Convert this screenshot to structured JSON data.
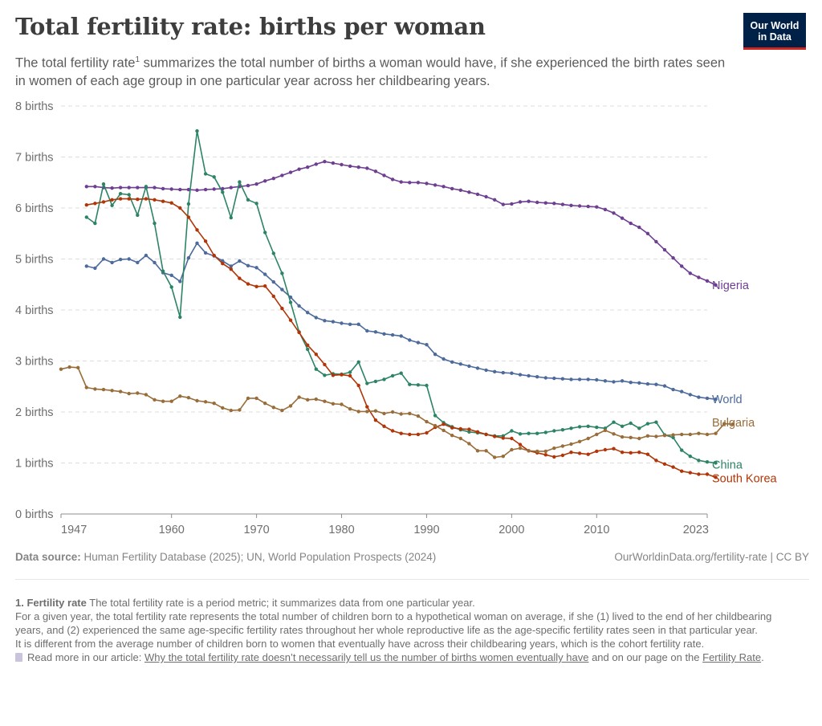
{
  "header": {
    "title": "Total fertility rate: births per woman",
    "subtitle_part1": "The total fertility rate",
    "subtitle_sup": "1",
    "subtitle_part2": " summarizes the total number of births a woman would have, if she experienced the birth rates seen in women of each age group in one particular year across her childbearing years.",
    "logo_line1": "Our World",
    "logo_line2": "in Data"
  },
  "chart_data": {
    "type": "line",
    "yunit": "births",
    "ylim": [
      0,
      8
    ],
    "yticks": [
      0,
      1,
      2,
      3,
      4,
      5,
      6,
      7,
      8
    ],
    "ytick_labels": [
      "0 births",
      "1 births",
      "2 births",
      "3 births",
      "4 births",
      "5 births",
      "6 births",
      "7 births",
      "8 births"
    ],
    "xlim": [
      1947,
      2023
    ],
    "xticks": [
      1947,
      1960,
      1970,
      1980,
      1990,
      2000,
      2010,
      2023
    ],
    "grid": "horizontal-dashed",
    "legend": "inline-right",
    "series": [
      {
        "name": "Nigeria",
        "color": "#6d3e91",
        "start": 1950,
        "values": [
          6.42,
          6.42,
          6.4,
          6.39,
          6.4,
          6.4,
          6.4,
          6.4,
          6.4,
          6.38,
          6.37,
          6.36,
          6.36,
          6.35,
          6.36,
          6.37,
          6.38,
          6.4,
          6.42,
          6.44,
          6.47,
          6.53,
          6.58,
          6.64,
          6.7,
          6.76,
          6.8,
          6.86,
          6.91,
          6.88,
          6.85,
          6.82,
          6.8,
          6.78,
          6.72,
          6.64,
          6.56,
          6.51,
          6.5,
          6.5,
          6.48,
          6.45,
          6.42,
          6.38,
          6.35,
          6.31,
          6.27,
          6.22,
          6.16,
          6.07,
          6.08,
          6.12,
          6.13,
          6.11,
          6.1,
          6.09,
          6.07,
          6.05,
          6.04,
          6.03,
          6.02,
          5.97,
          5.9,
          5.8,
          5.7,
          5.62,
          5.5,
          5.34,
          5.18,
          5.02,
          4.86,
          4.72,
          4.64,
          4.57,
          4.49
        ]
      },
      {
        "name": "World",
        "color": "#4c6a9c",
        "start": 1950,
        "values": [
          4.86,
          4.82,
          5.0,
          4.93,
          4.99,
          5.0,
          4.93,
          5.07,
          4.93,
          4.73,
          4.68,
          4.56,
          5.02,
          5.31,
          5.12,
          5.06,
          4.96,
          4.86,
          4.96,
          4.87,
          4.83,
          4.7,
          4.55,
          4.4,
          4.25,
          4.08,
          3.95,
          3.85,
          3.79,
          3.77,
          3.74,
          3.72,
          3.72,
          3.59,
          3.57,
          3.53,
          3.51,
          3.49,
          3.41,
          3.36,
          3.32,
          3.13,
          3.04,
          2.98,
          2.94,
          2.9,
          2.86,
          2.82,
          2.79,
          2.77,
          2.76,
          2.73,
          2.71,
          2.69,
          2.67,
          2.66,
          2.65,
          2.64,
          2.64,
          2.64,
          2.63,
          2.61,
          2.59,
          2.61,
          2.58,
          2.57,
          2.55,
          2.54,
          2.51,
          2.44,
          2.4,
          2.34,
          2.29,
          2.27,
          2.25
        ]
      },
      {
        "name": "China",
        "color": "#2c8465",
        "start": 1950,
        "values": [
          5.82,
          5.7,
          6.47,
          6.05,
          6.28,
          6.26,
          5.86,
          6.42,
          5.7,
          4.76,
          4.45,
          3.86,
          6.08,
          7.51,
          6.67,
          6.61,
          6.31,
          5.81,
          6.51,
          6.16,
          6.09,
          5.52,
          5.11,
          4.72,
          4.15,
          3.57,
          3.23,
          2.84,
          2.72,
          2.75,
          2.74,
          2.78,
          2.98,
          2.56,
          2.6,
          2.64,
          2.71,
          2.76,
          2.54,
          2.53,
          2.52,
          1.93,
          1.79,
          1.71,
          1.65,
          1.61,
          1.59,
          1.56,
          1.53,
          1.53,
          1.63,
          1.57,
          1.58,
          1.58,
          1.6,
          1.63,
          1.65,
          1.68,
          1.71,
          1.72,
          1.7,
          1.68,
          1.8,
          1.72,
          1.78,
          1.68,
          1.77,
          1.8,
          1.55,
          1.5,
          1.25,
          1.13,
          1.05,
          1.02,
          1.0
        ]
      },
      {
        "name": "South Korea",
        "color": "#b13507",
        "start": 1950,
        "values": [
          6.06,
          6.09,
          6.12,
          6.16,
          6.18,
          6.18,
          6.17,
          6.18,
          6.16,
          6.13,
          6.1,
          6.0,
          5.82,
          5.57,
          5.35,
          5.07,
          4.91,
          4.8,
          4.62,
          4.51,
          4.46,
          4.47,
          4.27,
          4.03,
          3.8,
          3.56,
          3.31,
          3.13,
          2.93,
          2.72,
          2.73,
          2.71,
          2.52,
          2.1,
          1.84,
          1.72,
          1.63,
          1.58,
          1.56,
          1.56,
          1.59,
          1.7,
          1.76,
          1.69,
          1.67,
          1.66,
          1.61,
          1.56,
          1.52,
          1.49,
          1.48,
          1.36,
          1.24,
          1.2,
          1.16,
          1.12,
          1.15,
          1.21,
          1.19,
          1.17,
          1.23,
          1.26,
          1.28,
          1.21,
          1.2,
          1.21,
          1.17,
          1.05,
          0.98,
          0.92,
          0.84,
          0.81,
          0.78,
          0.78,
          0.72
        ]
      },
      {
        "name": "Bulgaria",
        "color": "#996d39",
        "start": 1947,
        "values": [
          2.84,
          2.88,
          2.87,
          2.48,
          2.45,
          2.44,
          2.42,
          2.4,
          2.36,
          2.37,
          2.34,
          2.24,
          2.21,
          2.21,
          2.31,
          2.28,
          2.22,
          2.2,
          2.17,
          2.08,
          2.03,
          2.04,
          2.27,
          2.27,
          2.17,
          2.09,
          2.03,
          2.12,
          2.29,
          2.24,
          2.25,
          2.21,
          2.16,
          2.15,
          2.06,
          2.01,
          2.01,
          2.02,
          1.97,
          2.0,
          1.96,
          1.97,
          1.92,
          1.81,
          1.73,
          1.64,
          1.54,
          1.48,
          1.38,
          1.24,
          1.24,
          1.11,
          1.13,
          1.26,
          1.29,
          1.24,
          1.23,
          1.23,
          1.29,
          1.33,
          1.37,
          1.42,
          1.48,
          1.56,
          1.64,
          1.57,
          1.51,
          1.5,
          1.48,
          1.53,
          1.52,
          1.54,
          1.55,
          1.56,
          1.56,
          1.58,
          1.56,
          1.58,
          1.77,
          1.76
        ]
      }
    ]
  },
  "footer": {
    "source_label": "Data source:",
    "source_text": " Human Fertility Database (2025); UN, World Population Prospects (2024)",
    "license": "OurWorldinData.org/fertility-rate | CC BY",
    "fn1_label": "1. Fertility rate",
    "fn1_text": " The total fertility rate is a period metric; it summarizes data from one particular year.",
    "fn2": "For a given year, the total fertility rate represents the total number of children born to a hypothetical woman on average, if she (1) lived to the end of her childbearing years, and (2) experienced the same age-specific fertility rates throughout her whole reproductive life as the age-specific fertility rates seen in that particular year.",
    "fn3": "It is different from the average number of children born to women that eventually have across their childbearing years, which is the cohort fertility rate.",
    "readmore_prefix": "Read more in our article: ",
    "readmore_link": "Why the total fertility rate doesn’t necessarily tell us the number of births women eventually have",
    "readmore_mid": " and on our page on the ",
    "readmore_link2": "Fertility Rate",
    "readmore_suffix": "."
  }
}
